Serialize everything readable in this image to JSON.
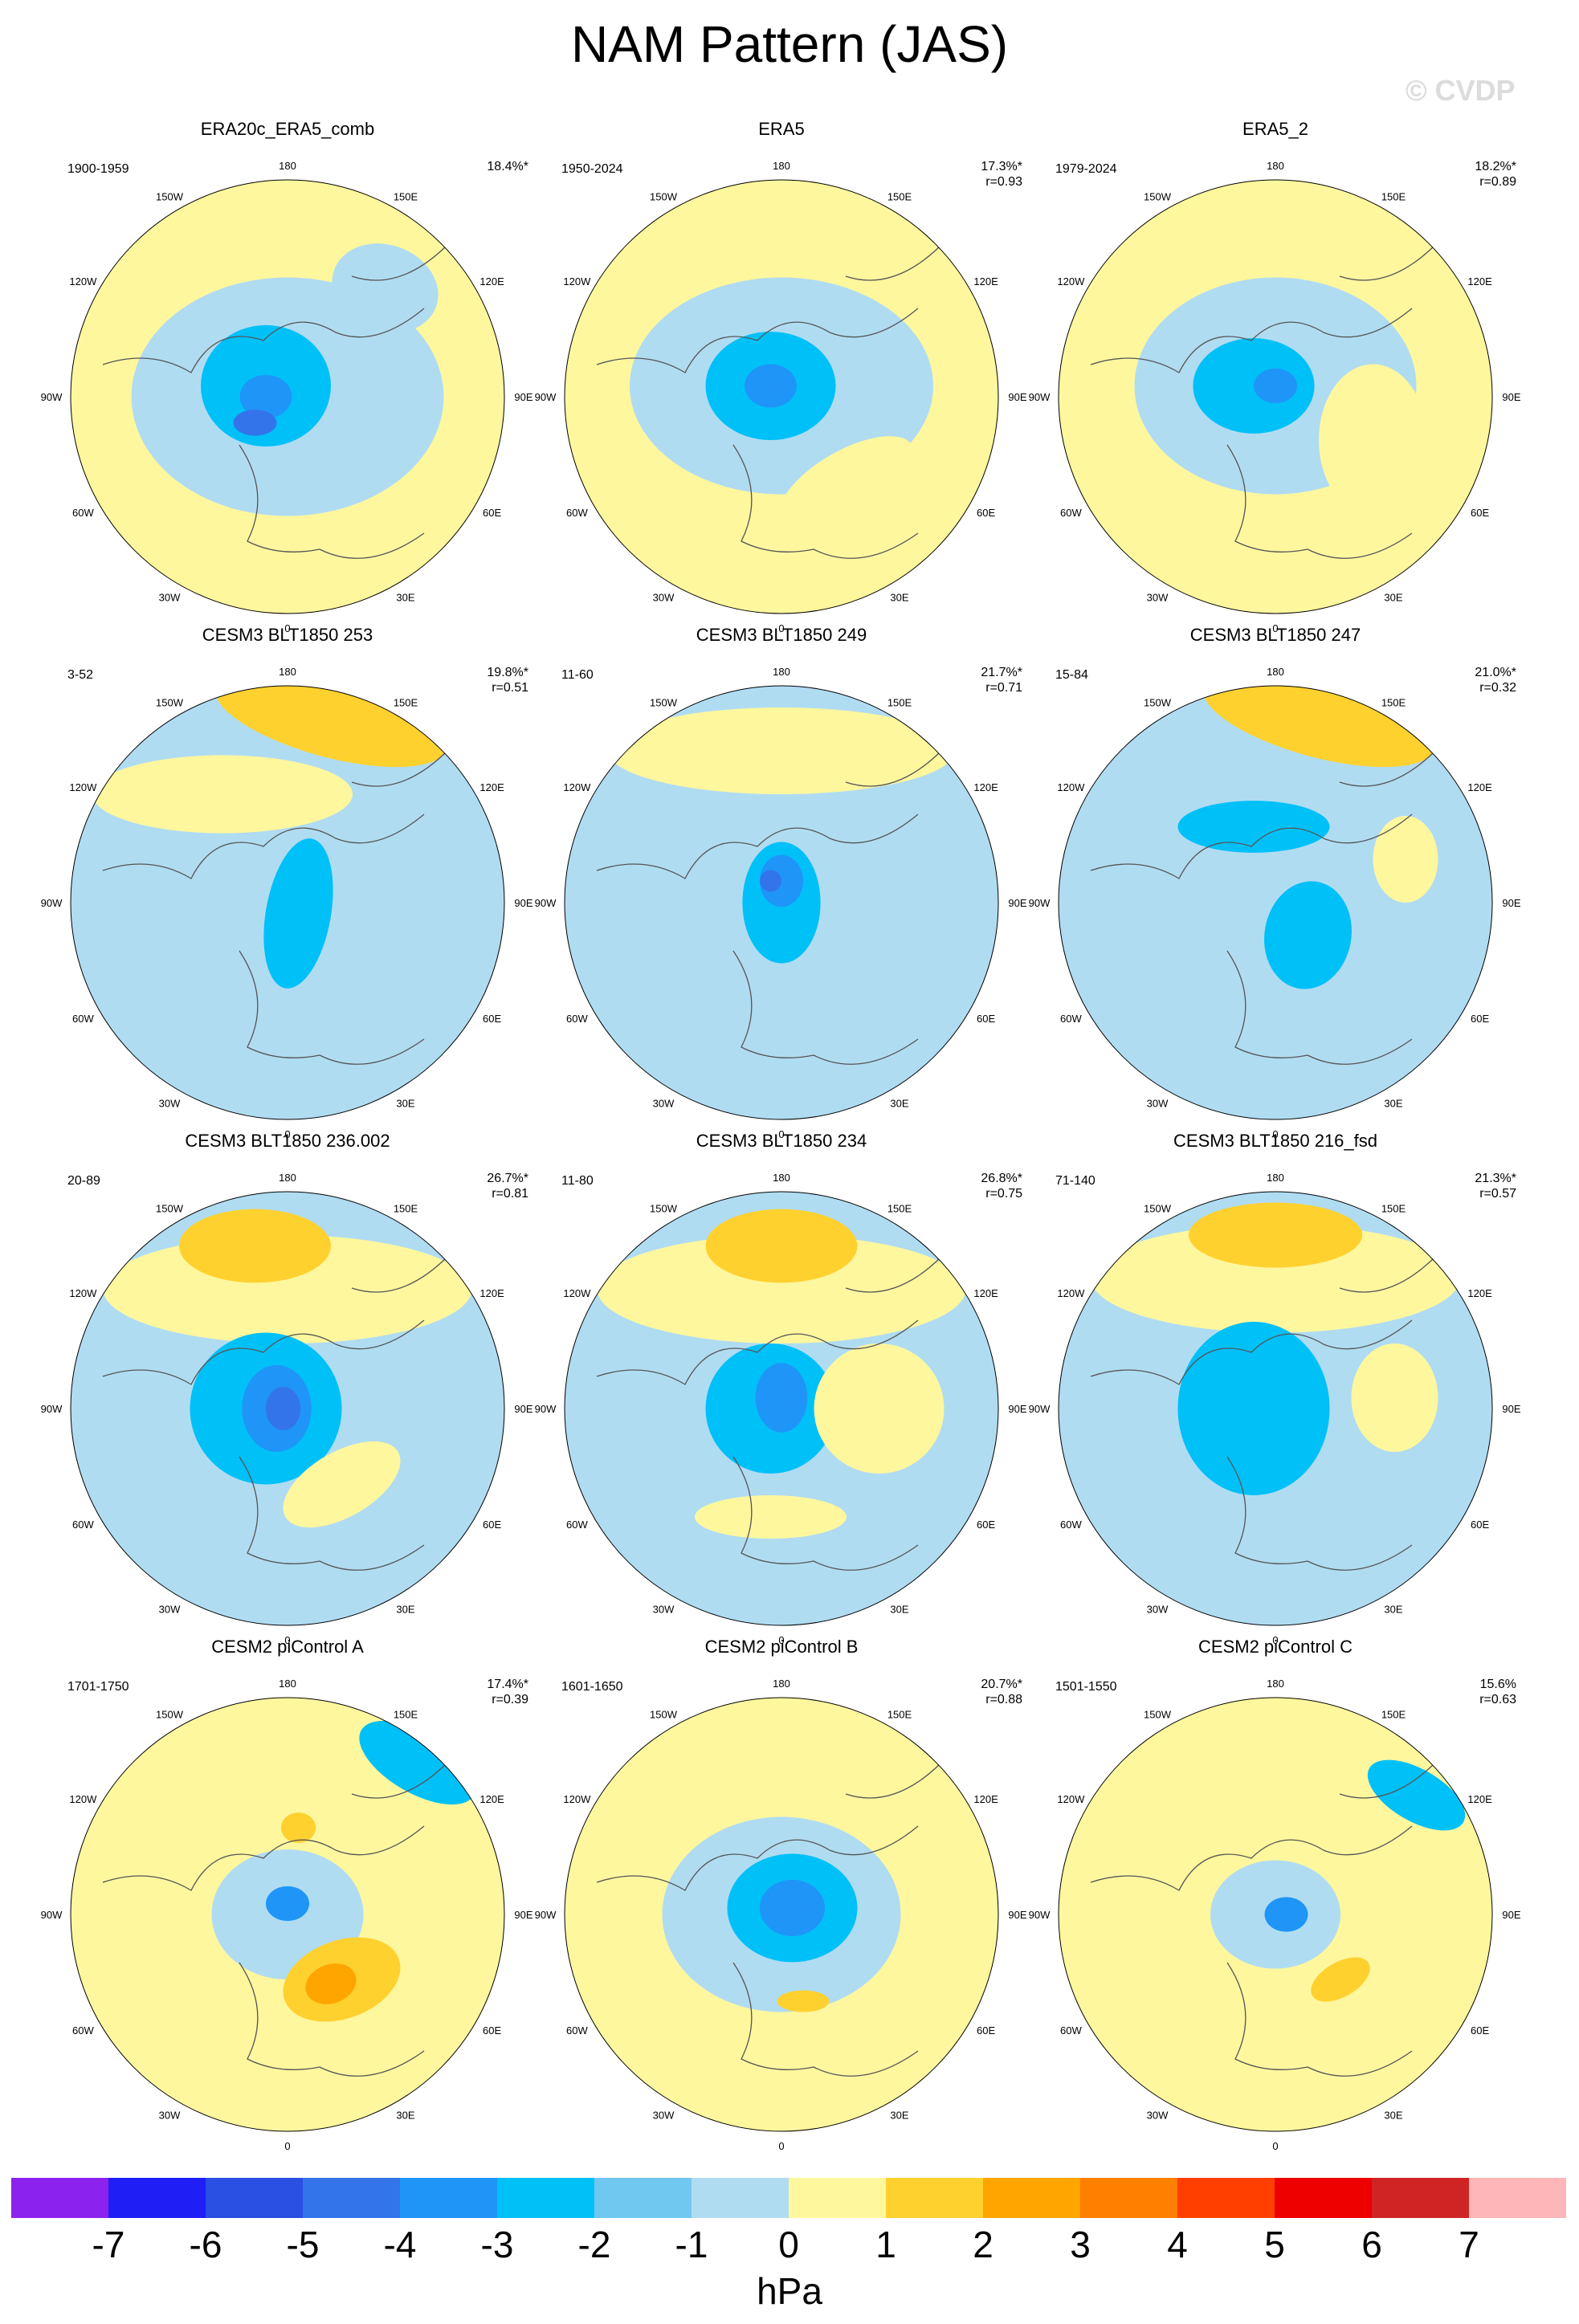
{
  "title": "NAM Pattern (JAS)",
  "watermark": "© CVDP",
  "units": "hPa",
  "colorbar": {
    "colors": [
      "#8c22ee",
      "#1e1ef5",
      "#2a4fe3",
      "#3374ea",
      "#1f95f7",
      "#00c0f8",
      "#70c8f0",
      "#b0dcf2",
      "#fff79e",
      "#ffd12f",
      "#ffa500",
      "#ff7f00",
      "#ff3f00",
      "#ee0000",
      "#d02424",
      "#ffb6b8"
    ],
    "labels": [
      "-7",
      "-6",
      "-5",
      "-4",
      "-3",
      "-2",
      "-1",
      "0",
      "1",
      "2",
      "3",
      "4",
      "5",
      "6",
      "7"
    ]
  },
  "map_labels": {
    "lon": [
      "180",
      "150E",
      "120E",
      "90E",
      "60E",
      "30E",
      "0",
      "30W",
      "60W",
      "90W",
      "120W",
      "150W"
    ]
  },
  "panels": [
    {
      "title": "ERA20c_ERA5_comb",
      "years": "1900-1959",
      "pct": "18.4%*",
      "r": ""
    },
    {
      "title": "ERA5",
      "years": "1950-2024",
      "pct": "17.3%*",
      "r": "r=0.93"
    },
    {
      "title": "ERA5_2",
      "years": "1979-2024",
      "pct": "18.2%*",
      "r": "r=0.89"
    },
    {
      "title": "CESM3 BLT1850 253",
      "years": "3-52",
      "pct": "19.8%*",
      "r": "r=0.51"
    },
    {
      "title": "CESM3 BLT1850 249",
      "years": "11-60",
      "pct": "21.7%*",
      "r": "r=0.71"
    },
    {
      "title": "CESM3 BLT1850 247",
      "years": "15-84",
      "pct": "21.0%*",
      "r": "r=0.32"
    },
    {
      "title": "CESM3 BLT1850 236.002",
      "years": "20-89",
      "pct": "26.7%*",
      "r": "r=0.81"
    },
    {
      "title": "CESM3 BLT1850 234",
      "years": "11-80",
      "pct": "26.8%*",
      "r": "r=0.75"
    },
    {
      "title": "CESM3 BLT1850 216_fsd",
      "years": "71-140",
      "pct": "21.3%*",
      "r": "r=0.57"
    },
    {
      "title": "CESM2 piControl A",
      "years": "1701-1750",
      "pct": "17.4%*",
      "r": "r=0.39"
    },
    {
      "title": "CESM2 piControl B",
      "years": "1601-1650",
      "pct": "20.7%*",
      "r": "r=0.88"
    },
    {
      "title": "CESM2 piControl C",
      "years": "1501-1550",
      "pct": "15.6%",
      "r": "r=0.63"
    }
  ],
  "chart_data": {
    "type": "heatmap",
    "description_units": "hPa",
    "levels": [
      -7,
      -6,
      -5,
      -4,
      -3,
      -2,
      -1,
      0,
      1,
      2,
      3,
      4,
      5,
      6,
      7
    ],
    "panels_count": 12
  }
}
